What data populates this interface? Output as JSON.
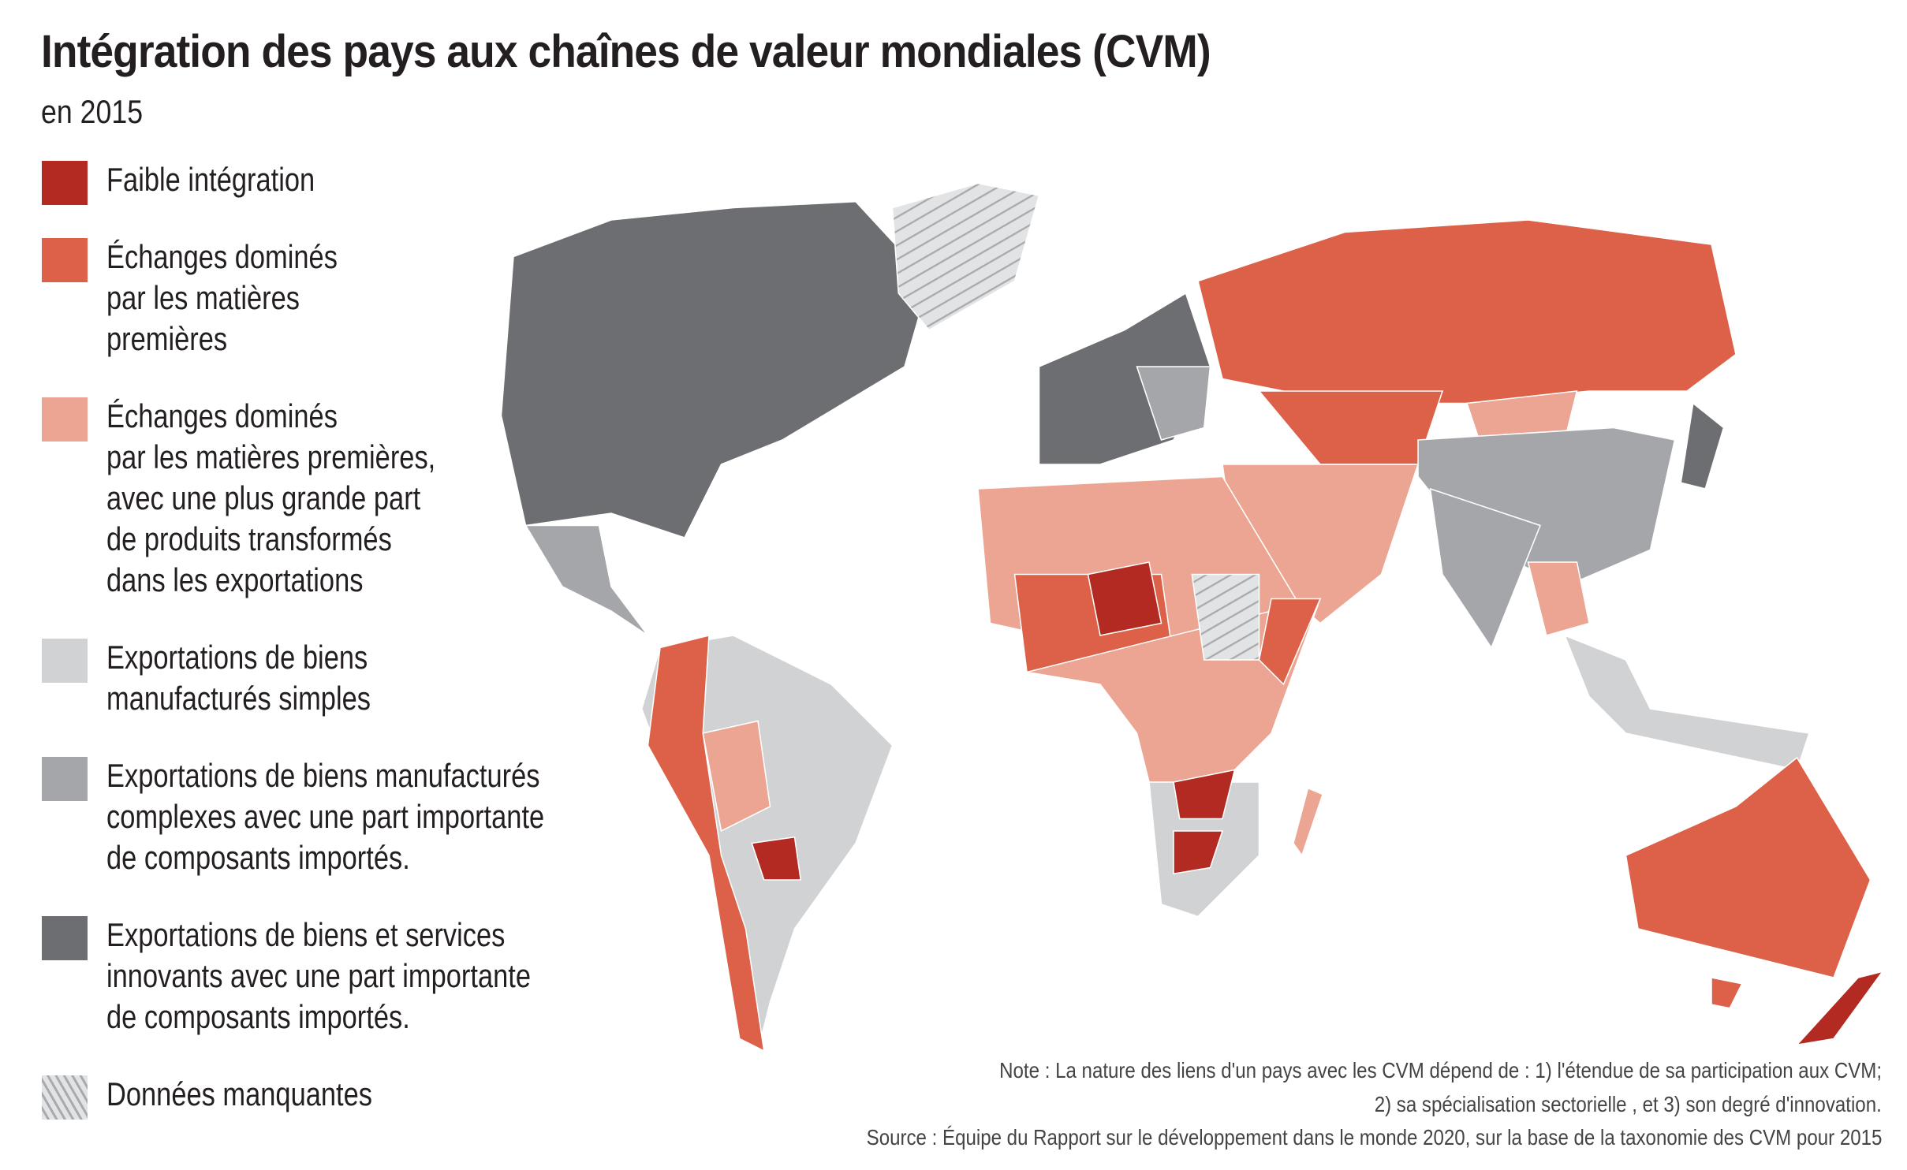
{
  "header": {
    "title": "Intégration des pays aux chaînes de valeur mondiales (CVM)",
    "subtitle": "en 2015"
  },
  "legend": [
    {
      "color": "#b22a22",
      "lines": [
        "Faible intégration"
      ]
    },
    {
      "color": "#dc6148",
      "lines": [
        "Échanges dominés",
        "par les matières",
        "premières"
      ]
    },
    {
      "color": "#eba592",
      "lines": [
        "Échanges dominés",
        "par les matières premières,",
        "avec une plus grande part",
        "de produits transformés",
        "dans les exportations"
      ]
    },
    {
      "color": "#d1d2d4",
      "lines": [
        "Exportations de biens",
        "manufacturés simples"
      ]
    },
    {
      "color": "#a5a6a9",
      "lines": [
        "Exportations de biens manufacturés",
        "complexes avec une part importante",
        "de composants importés."
      ]
    },
    {
      "color": "#6d6e71",
      "lines": [
        "Exportations de biens et services",
        "innovants avec une part importante",
        "de composants importés."
      ]
    },
    {
      "color": "hatch",
      "lines": [
        "Données manquantes"
      ]
    }
  ],
  "note": [
    "Note : La nature des liens d'un pays avec les CVM dépend de : 1) l'étendue de sa participation aux CVM;",
    "2) sa spécialisation sectorielle , et 3) son degré d'innovation."
  ],
  "source": "Source : Équipe du Rapport sur le développement dans le monde 2020, sur la base de la taxonomie des CVM pour 2015"
}
